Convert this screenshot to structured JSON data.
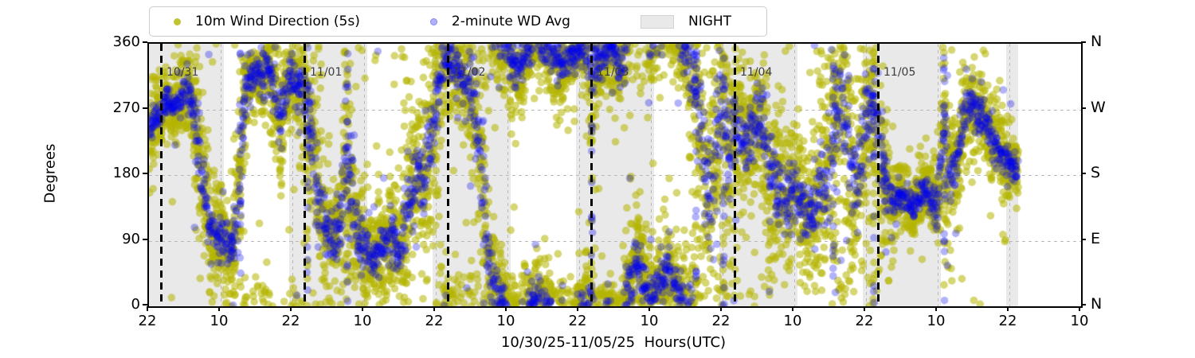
{
  "figure": {
    "background": "#ffffff"
  },
  "legend": {
    "items": [
      {
        "label": "10m Wind Direction (5s)",
        "marker": "dot",
        "color": "#b4b400",
        "alpha": 0.55
      },
      {
        "label": "2-minute WD Avg",
        "marker": "dot",
        "color": "#0000ee",
        "alpha": 0.3
      },
      {
        "label": "NIGHT",
        "marker": "patch",
        "color": "#e9e9e9"
      }
    ]
  },
  "chart_data": {
    "type": "scatter",
    "xlabel": "10/30/25-11/05/25  Hours(UTC)",
    "ylabel": "Degrees",
    "x_axis": {
      "hours_range": [
        0,
        156
      ],
      "tick_interval_hours": 12,
      "tick_labels": [
        "22",
        "10",
        "22",
        "10",
        "22",
        "10",
        "22",
        "10",
        "22",
        "10",
        "22",
        "10",
        "22",
        "10"
      ]
    },
    "y_axis": {
      "range_deg": [
        0,
        360
      ],
      "ticks": [
        {
          "deg": 0,
          "left": "0",
          "right": "N"
        },
        {
          "deg": 90,
          "left": "90",
          "right": "E"
        },
        {
          "deg": 180,
          "left": "180",
          "right": "S"
        },
        {
          "deg": 270,
          "left": "270",
          "right": "W"
        },
        {
          "deg": 360,
          "left": "360",
          "right": "N"
        }
      ],
      "grid_deg": [
        90,
        180,
        270
      ]
    },
    "night_bands_hours": [
      [
        0,
        12.5
      ],
      [
        23.5,
        36.5
      ],
      [
        47.5,
        60.5
      ],
      [
        71.5,
        84.5
      ],
      [
        95.5,
        108.5
      ],
      [
        119.5,
        132.5
      ],
      [
        143.5,
        145.5
      ]
    ],
    "midnights": [
      {
        "hour": 2,
        "label": "10/31"
      },
      {
        "hour": 26,
        "label": "11/01"
      },
      {
        "hour": 50,
        "label": "11/02"
      },
      {
        "hour": 74,
        "label": "11/03"
      },
      {
        "hour": 98,
        "label": "11/04"
      },
      {
        "hour": 122,
        "label": "11/05"
      }
    ],
    "series": [
      {
        "name": "10m Wind Direction (5s)",
        "color": "#b4b400",
        "alpha": 0.55,
        "radius": 4.8,
        "points_per_hour": 40,
        "spread_factor": 1.7,
        "outlier_rate": 0.09,
        "outlier_spread_factor": 3.6
      },
      {
        "name": "2-minute WD Avg",
        "color": "#0000ee",
        "alpha": 0.3,
        "radius": 4.8,
        "points_per_hour": 18,
        "spread_factor": 0.75,
        "outlier_rate": 0.03,
        "outlier_spread_factor": 2.8
      }
    ],
    "transition_streak_hours": [
      15.3,
      26.5,
      33.2,
      74.1,
      91.5,
      96.2,
      114.5,
      121.3,
      133.1
    ],
    "trend_hour_deg_spread": [
      [
        0,
        245,
        18
      ],
      [
        1,
        258,
        16
      ],
      [
        2,
        268,
        14
      ],
      [
        3,
        278,
        14
      ],
      [
        4,
        272,
        14
      ],
      [
        5,
        284,
        14
      ],
      [
        6,
        295,
        16
      ],
      [
        7,
        288,
        18
      ],
      [
        8,
        240,
        30
      ],
      [
        9,
        170,
        35
      ],
      [
        10,
        112,
        25
      ],
      [
        11,
        90,
        20
      ],
      [
        12,
        100,
        20
      ],
      [
        13,
        72,
        22
      ],
      [
        14,
        82,
        20
      ],
      [
        15,
        150,
        45
      ],
      [
        16,
        290,
        30
      ],
      [
        17,
        312,
        20
      ],
      [
        18,
        330,
        18
      ],
      [
        19,
        312,
        22
      ],
      [
        20,
        330,
        18
      ],
      [
        21,
        300,
        25
      ],
      [
        22,
        242,
        30
      ],
      [
        23,
        292,
        22
      ],
      [
        24,
        320,
        20
      ],
      [
        25,
        300,
        25
      ],
      [
        26,
        288,
        30
      ],
      [
        27,
        250,
        40
      ],
      [
        28,
        160,
        40
      ],
      [
        29,
        120,
        30
      ],
      [
        30,
        100,
        25
      ],
      [
        31,
        92,
        22
      ],
      [
        32,
        112,
        30
      ],
      [
        33,
        250,
        60
      ],
      [
        34,
        150,
        40
      ],
      [
        35,
        92,
        25
      ],
      [
        36,
        80,
        22
      ],
      [
        37,
        70,
        20
      ],
      [
        38,
        62,
        20
      ],
      [
        39,
        80,
        22
      ],
      [
        40,
        100,
        25
      ],
      [
        41,
        92,
        22
      ],
      [
        42,
        72,
        22
      ],
      [
        43,
        120,
        35
      ],
      [
        44,
        162,
        35
      ],
      [
        45,
        190,
        30
      ],
      [
        46,
        172,
        45
      ],
      [
        47,
        205,
        40
      ],
      [
        48,
        280,
        35
      ],
      [
        49,
        322,
        25
      ],
      [
        50,
        342,
        20
      ],
      [
        51,
        330,
        20
      ],
      [
        52,
        320,
        22
      ],
      [
        53,
        300,
        28
      ],
      [
        54,
        288,
        40
      ],
      [
        55,
        250,
        45
      ],
      [
        56,
        150,
        50
      ],
      [
        57,
        60,
        35
      ],
      [
        58,
        22,
        25
      ],
      [
        59,
        8,
        20
      ],
      [
        60,
        352,
        18
      ],
      [
        61,
        332,
        20
      ],
      [
        62,
        322,
        20
      ],
      [
        63,
        342,
        18
      ],
      [
        64,
        356,
        16
      ],
      [
        65,
        10,
        16
      ],
      [
        66,
        4,
        16
      ],
      [
        67,
        352,
        16
      ],
      [
        68,
        342,
        18
      ],
      [
        69,
        332,
        18
      ],
      [
        70,
        336,
        16
      ],
      [
        71,
        342,
        16
      ],
      [
        72,
        350,
        16
      ],
      [
        73,
        356,
        16
      ],
      [
        74,
        342,
        40
      ],
      [
        75,
        332,
        20
      ],
      [
        76,
        342,
        18
      ],
      [
        77,
        350,
        16
      ],
      [
        78,
        346,
        16
      ],
      [
        79,
        330,
        20
      ],
      [
        80,
        20,
        30
      ],
      [
        81,
        42,
        25
      ],
      [
        82,
        58,
        28
      ],
      [
        83,
        22,
        22
      ],
      [
        84,
        12,
        20
      ],
      [
        85,
        30,
        22
      ],
      [
        86,
        42,
        22
      ],
      [
        87,
        52,
        22
      ],
      [
        88,
        32,
        22
      ],
      [
        89,
        10,
        20
      ],
      [
        90,
        352,
        25
      ],
      [
        91,
        322,
        40
      ],
      [
        92,
        282,
        50
      ],
      [
        93,
        200,
        55
      ],
      [
        94,
        152,
        50
      ],
      [
        95,
        250,
        55
      ],
      [
        96,
        300,
        60
      ],
      [
        97,
        200,
        55
      ],
      [
        98,
        252,
        40
      ],
      [
        99,
        232,
        35
      ],
      [
        100,
        222,
        30
      ],
      [
        101,
        242,
        30
      ],
      [
        102,
        262,
        30
      ],
      [
        103,
        222,
        40
      ],
      [
        104,
        182,
        40
      ],
      [
        105,
        162,
        35
      ],
      [
        106,
        142,
        35
      ],
      [
        107,
        152,
        30
      ],
      [
        108,
        162,
        30
      ],
      [
        109,
        142,
        30
      ],
      [
        110,
        122,
        30
      ],
      [
        111,
        132,
        30
      ],
      [
        112,
        152,
        35
      ],
      [
        113,
        172,
        45
      ],
      [
        114,
        202,
        60
      ],
      [
        115,
        262,
        55
      ],
      [
        116,
        302,
        50
      ],
      [
        117,
        222,
        60
      ],
      [
        118,
        152,
        50
      ],
      [
        119,
        202,
        50
      ],
      [
        120,
        252,
        45
      ],
      [
        121,
        272,
        40
      ],
      [
        122,
        242,
        45
      ],
      [
        123,
        182,
        35
      ],
      [
        124,
        152,
        20
      ],
      [
        125,
        142,
        15
      ],
      [
        126,
        152,
        14
      ],
      [
        127,
        142,
        14
      ],
      [
        128,
        132,
        14
      ],
      [
        129,
        152,
        14
      ],
      [
        130,
        162,
        14
      ],
      [
        131,
        142,
        14
      ],
      [
        132,
        132,
        16
      ],
      [
        133,
        250,
        45
      ],
      [
        134,
        172,
        25
      ],
      [
        135,
        200,
        25
      ],
      [
        136,
        242,
        22
      ],
      [
        137,
        268,
        20
      ],
      [
        138,
        278,
        20
      ],
      [
        139,
        262,
        20
      ],
      [
        140,
        252,
        18
      ],
      [
        141,
        232,
        18
      ],
      [
        142,
        222,
        18
      ],
      [
        143,
        202,
        16
      ],
      [
        144,
        196,
        16
      ],
      [
        145,
        190,
        16
      ],
      [
        145.5,
        188,
        14
      ]
    ]
  }
}
